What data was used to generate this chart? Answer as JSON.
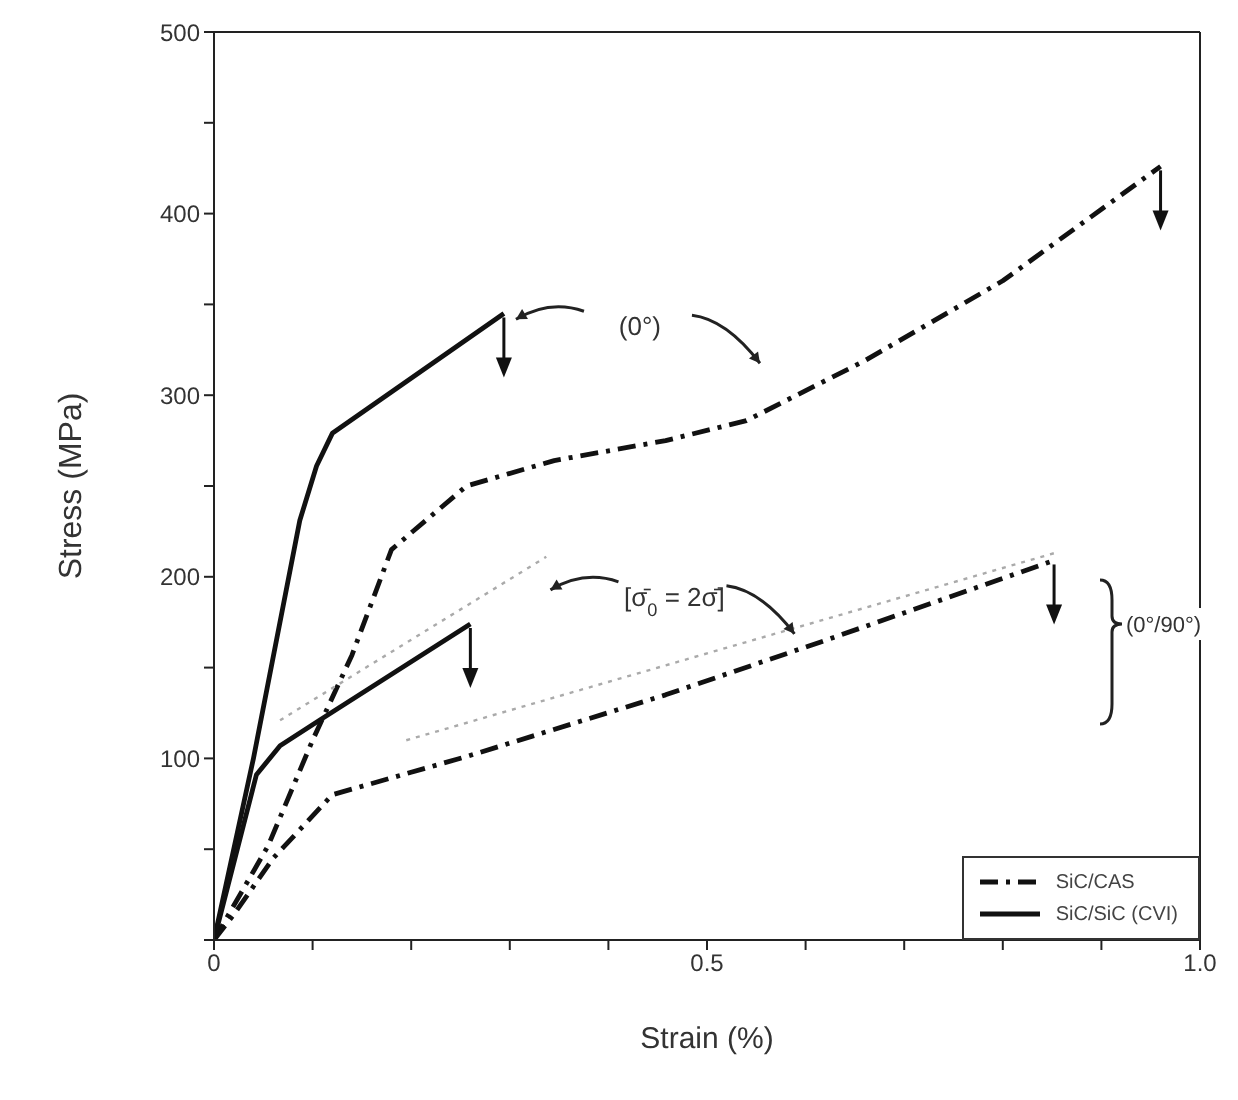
{
  "chart_data": {
    "type": "line",
    "xlabel": "Strain (%)",
    "ylabel": "Stress (MPa)",
    "xlim": [
      0,
      1
    ],
    "ylim": [
      0,
      500
    ],
    "xticks": [
      0,
      {
        "value": 0.1,
        "label": null
      },
      {
        "value": 0.2,
        "label": null
      },
      {
        "value": 0.3,
        "label": null
      },
      {
        "value": 0.4,
        "label": null
      },
      {
        "value": 0.5,
        "label": "0.5"
      },
      {
        "value": 0.6,
        "label": null
      },
      {
        "value": 0.7,
        "label": null
      },
      {
        "value": 0.8,
        "label": null
      },
      {
        "value": 0.9,
        "label": null
      },
      {
        "value": 1,
        "label": "1.0"
      }
    ],
    "yticks": [
      {
        "value": 0,
        "label": null
      },
      {
        "value": 50,
        "label": null
      },
      100,
      {
        "value": 150,
        "label": null
      },
      200,
      {
        "value": 250,
        "label": null
      },
      300,
      {
        "value": 350,
        "label": null
      },
      400,
      {
        "value": 450,
        "label": null
      },
      500
    ],
    "series": [
      {
        "name": "SiC/CAS",
        "color": "#111111",
        "line_style": "dashed",
        "x": [
          0,
          0.055,
          0.1,
          0.14,
          0.18,
          0.256,
          0.345,
          0.458,
          0.54,
          0.66,
          0.8,
          0.96
        ],
        "values": [
          0,
          52,
          110,
          157,
          215,
          250,
          264,
          275,
          286,
          319,
          363,
          426
        ]
      },
      {
        "color": "#111111",
        "line_style": "dashed",
        "x": [
          0,
          0.02,
          0.06,
          0.12,
          0.256,
          0.458,
          0.62,
          0.852
        ],
        "values": [
          0,
          14,
          45,
          80,
          101,
          135,
          165,
          209
        ]
      },
      {
        "name": "SiC/SiC (CVI)",
        "color": "#111111",
        "line_style": "solid",
        "x": [
          0,
          0.04,
          0.087,
          0.104,
          0.12,
          0.294
        ],
        "values": [
          0,
          100,
          231,
          261,
          279,
          345
        ]
      },
      {
        "color": "#111111",
        "line_style": "solid",
        "x": [
          0,
          0.043,
          0.067,
          0.107,
          0.26
        ],
        "values": [
          0,
          91,
          107,
          121,
          174
        ]
      },
      {
        "color": "#aaaaaa",
        "line_style": "dotted",
        "x": [
          0.067,
          0.337
        ],
        "values": [
          121,
          211
        ]
      },
      {
        "color": "#aaaaaa",
        "line_style": "dotted",
        "x": [
          0.195,
          0.852
        ],
        "values": [
          110,
          213
        ]
      }
    ],
    "legend": "bottom right",
    "annotations": [
      "(0°)",
      "[σ̄$_{0}$ = 2σ̄]",
      "(0°/90°)"
    ]
  }
}
